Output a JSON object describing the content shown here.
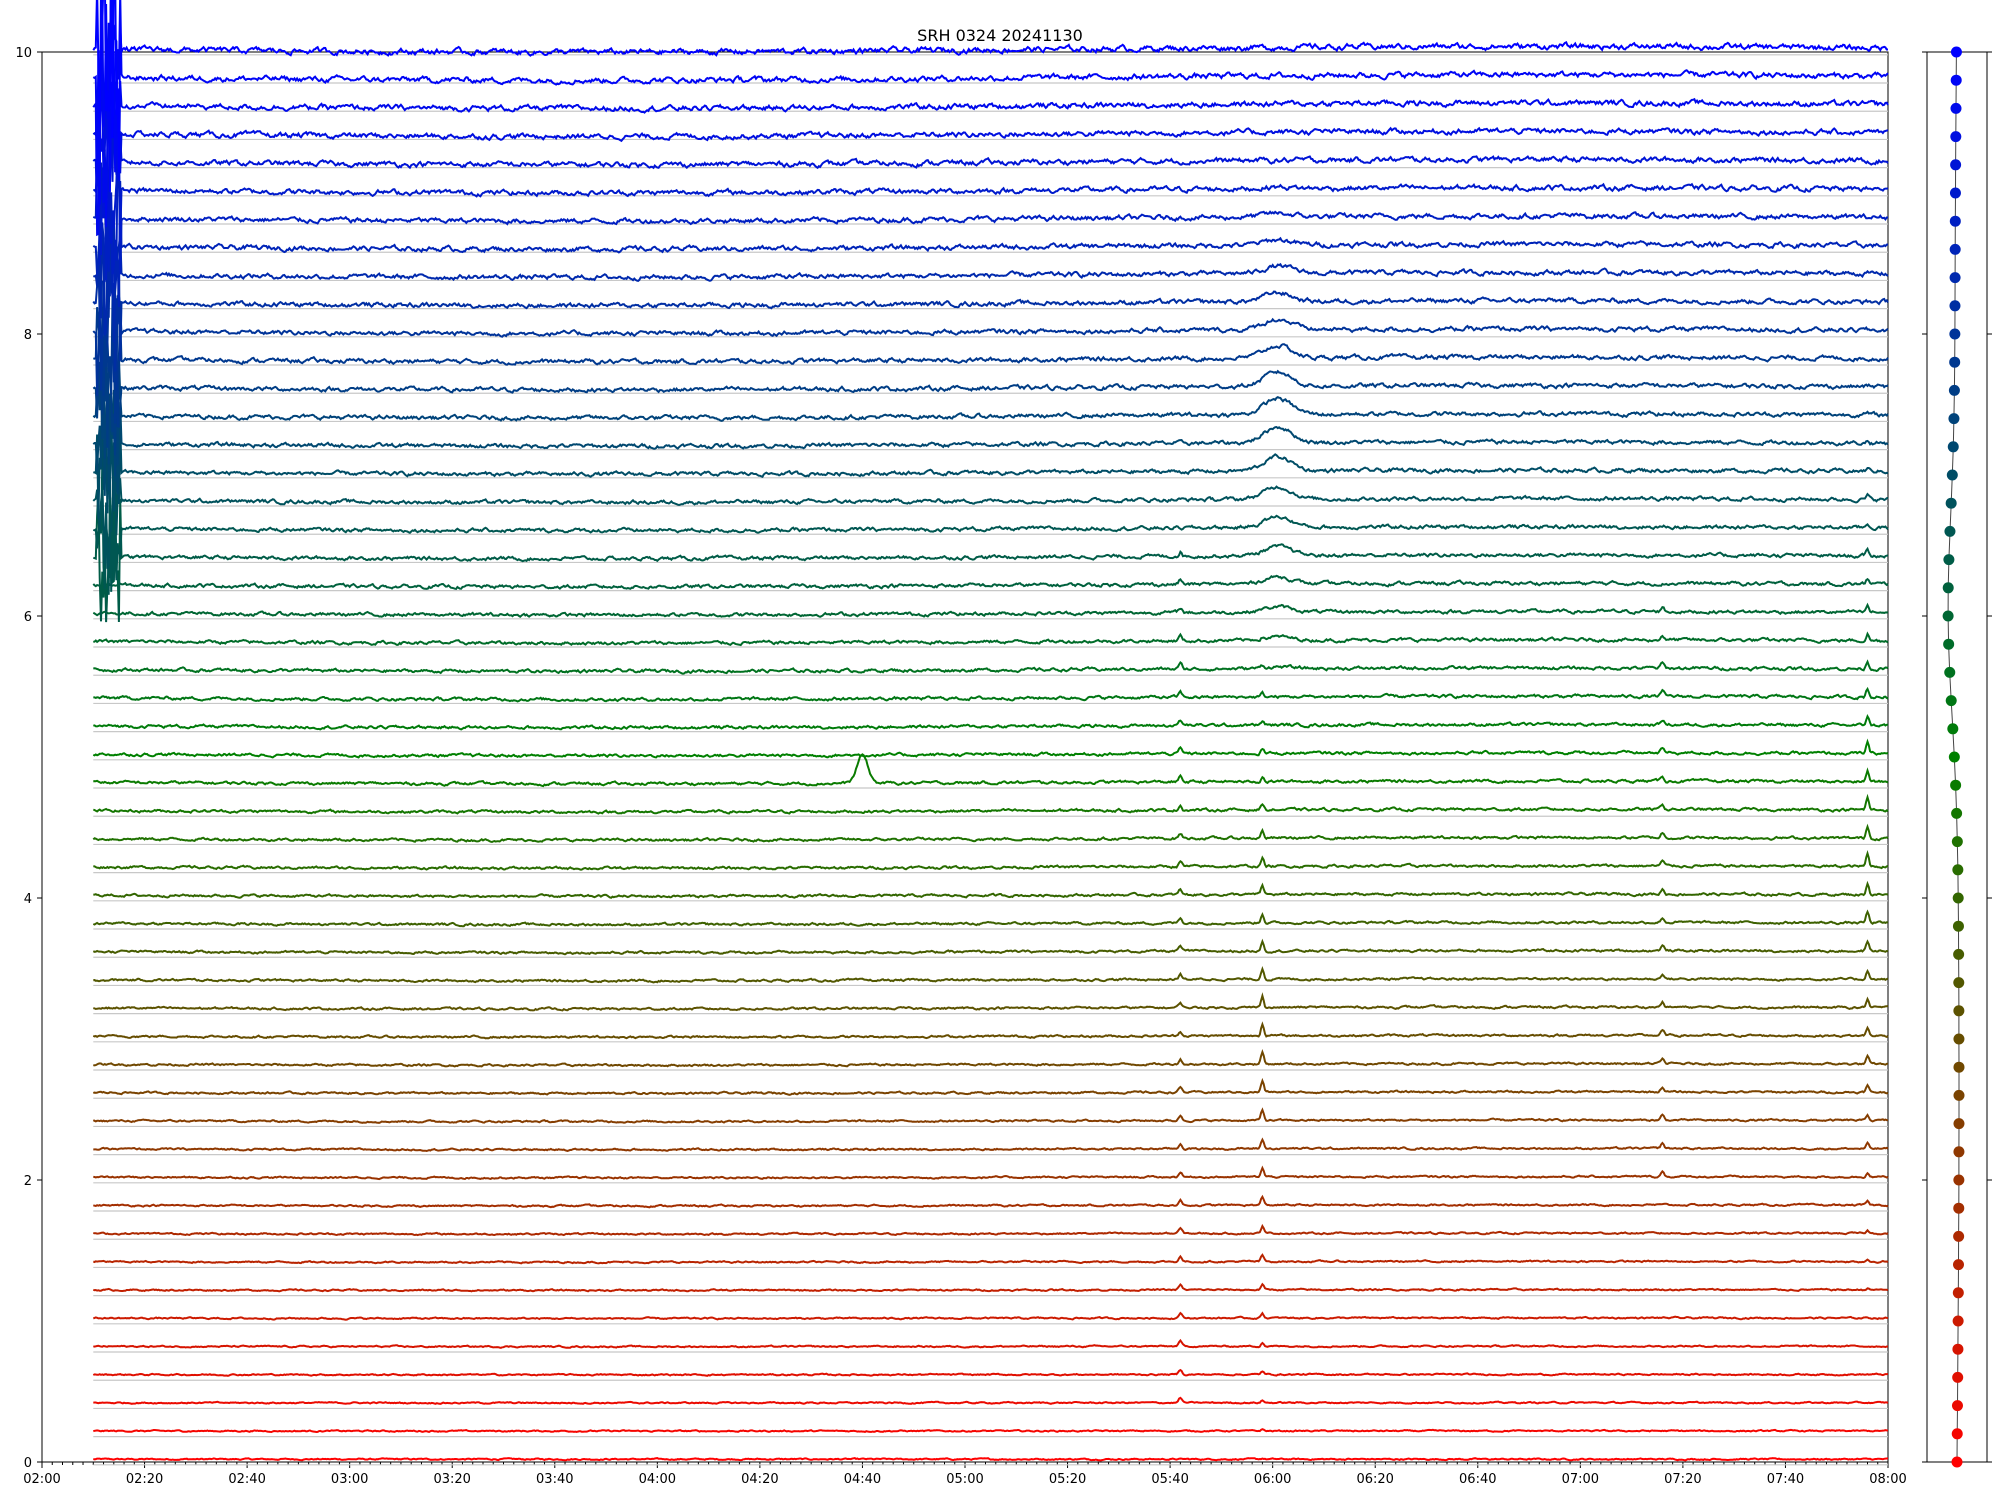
{
  "chart_data": [
    {
      "type": "line",
      "title": "SRH 0324 20241130",
      "xlabel": "",
      "ylabel": "",
      "xlim": [
        "02:00",
        "08:00"
      ],
      "ylim": [
        0,
        10
      ],
      "x_tick_labels": [
        "02:00",
        "02:20",
        "02:40",
        "03:00",
        "03:20",
        "03:40",
        "04:00",
        "04:20",
        "04:40",
        "05:00",
        "05:20",
        "05:40",
        "06:00",
        "06:20",
        "06:40",
        "07:00",
        "07:20",
        "07:40",
        "08:00"
      ],
      "y_tick_labels": [
        "0",
        "2",
        "4",
        "6",
        "8",
        "10"
      ],
      "y_ticks": [
        0,
        2,
        4,
        6,
        8,
        10
      ],
      "grid": false,
      "legend": "none",
      "color_gradient": {
        "start": "#ff0000",
        "mid": "#008000",
        "end": "#0000ff"
      },
      "series_count": 51,
      "series_spacing": 0.2,
      "data_start": "02:10",
      "data_end": "08:00",
      "series_baselines_first_last": [
        0.0,
        10.0
      ],
      "features": [
        {
          "time": "02:13",
          "kind": "interference burst",
          "series_range": [
            32,
            50
          ]
        },
        {
          "time": "04:40",
          "kind": "isolated peak",
          "series": 24,
          "peak_value": 5.0
        },
        {
          "time": "05:42",
          "kind": "small spike",
          "series_range": [
            2,
            32
          ]
        },
        {
          "time": "05:58",
          "kind": "sharp spike",
          "series_range": [
            0,
            30
          ]
        },
        {
          "time": "06:01",
          "kind": "broad hump",
          "series_range": [
            28,
            45
          ]
        },
        {
          "time": "07:16",
          "kind": "small spike",
          "series_range": [
            10,
            30
          ]
        },
        {
          "time": "07:56",
          "kind": "sharp spike",
          "series_range": [
            5,
            38
          ]
        }
      ]
    },
    {
      "type": "scatter",
      "title": "",
      "series_count": 51,
      "y_range": [
        0,
        10
      ],
      "points_color_gradient": {
        "start": "#ff0000",
        "mid": "#008000",
        "end": "#0000ff"
      }
    }
  ]
}
